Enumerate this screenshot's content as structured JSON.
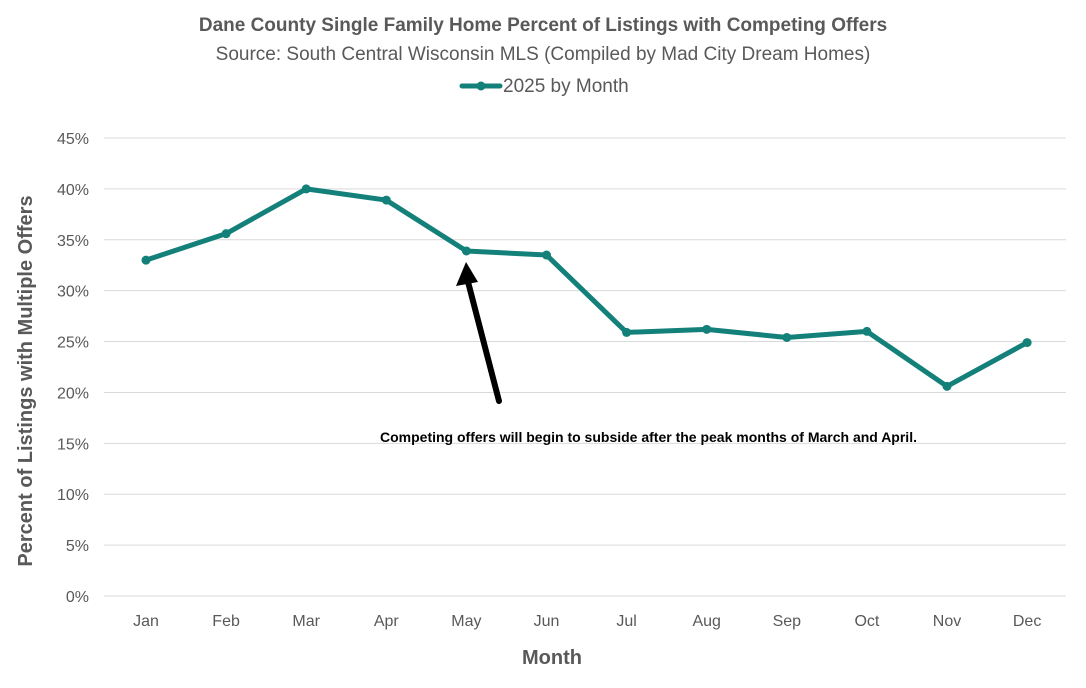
{
  "chart_data": {
    "type": "line",
    "title": "Dane County Single Family Home Percent of Listings with Competing Offers",
    "subtitle": "Source: South Central Wisconsin MLS (Compiled by Mad City Dream Homes)",
    "xlabel": "Month",
    "ylabel": "Percent of Listings with Multiple Offers",
    "categories": [
      "Jan",
      "Feb",
      "Mar",
      "Apr",
      "May",
      "Jun",
      "Jul",
      "Aug",
      "Sep",
      "Oct",
      "Nov",
      "Dec"
    ],
    "series": [
      {
        "name": "2025 by Month",
        "color": "#138079",
        "values": [
          33.0,
          35.6,
          40.0,
          38.9,
          33.9,
          33.5,
          25.9,
          26.2,
          25.4,
          26.0,
          20.6,
          24.9
        ]
      }
    ],
    "ylim": [
      0,
      45
    ],
    "yticks": [
      0,
      5,
      10,
      15,
      20,
      25,
      30,
      35,
      40,
      45
    ],
    "ytick_labels": [
      "0%",
      "5%",
      "10%",
      "15%",
      "20%",
      "25%",
      "30%",
      "35%",
      "40%",
      "45%"
    ],
    "grid": true,
    "legend_position": "top-center",
    "annotation": {
      "text": "Competing offers will begin to subside after the peak months of March and April.",
      "points_to": "May",
      "arrow_color": "#000000"
    }
  }
}
